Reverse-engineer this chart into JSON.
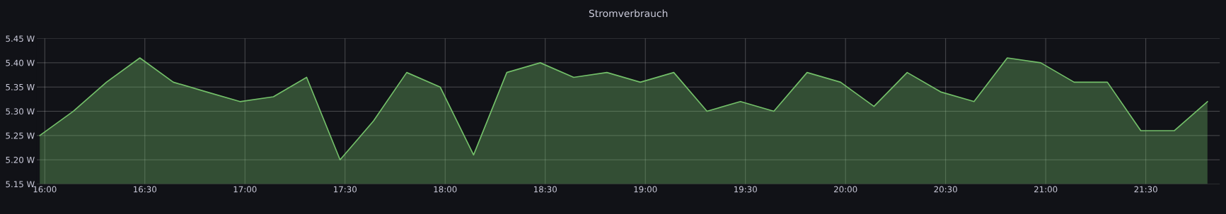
{
  "chart_data": {
    "type": "area",
    "title": "Stromverbrauch",
    "x": [
      15.975,
      16.142,
      16.308,
      16.475,
      16.642,
      16.808,
      16.975,
      17.142,
      17.308,
      17.475,
      17.642,
      17.808,
      17.975,
      18.142,
      18.308,
      18.475,
      18.642,
      18.808,
      18.975,
      19.142,
      19.308,
      19.475,
      19.642,
      19.808,
      19.975,
      20.142,
      20.308,
      20.475,
      20.642,
      20.808,
      20.975,
      21.142,
      21.308,
      21.475,
      21.642,
      21.808
    ],
    "series": [
      {
        "color": "#73bf69",
        "values": [
          5.25,
          5.3,
          5.36,
          5.41,
          5.36,
          5.34,
          5.32,
          5.33,
          5.37,
          5.2,
          5.28,
          5.38,
          5.35,
          5.21,
          5.38,
          5.4,
          5.37,
          5.38,
          5.36,
          5.38,
          5.3,
          5.32,
          5.3,
          5.38,
          5.36,
          5.31,
          5.38,
          5.34,
          5.32,
          5.41,
          5.4,
          5.36,
          5.36,
          5.26,
          5.26,
          5.32
        ]
      }
    ],
    "xlim": [
      15.96,
      21.87
    ],
    "xticks": [
      {
        "value": 16,
        "label": "16:00"
      },
      {
        "value": 16.5,
        "label": "16:30"
      },
      {
        "value": 17,
        "label": "17:00"
      },
      {
        "value": 17.5,
        "label": "17:30"
      },
      {
        "value": 18,
        "label": "18:00"
      },
      {
        "value": 18.5,
        "label": "18:30"
      },
      {
        "value": 19,
        "label": "19:00"
      },
      {
        "value": 19.5,
        "label": "19:30"
      },
      {
        "value": 20,
        "label": "20:00"
      },
      {
        "value": 20.5,
        "label": "20:30"
      },
      {
        "value": 21,
        "label": "21:00"
      },
      {
        "value": 21.5,
        "label": "21:30"
      }
    ],
    "ylim": [
      5.15,
      5.45
    ],
    "yticks": [
      {
        "value": 5.15,
        "label": "5.15 W"
      },
      {
        "value": 5.2,
        "label": "5.20 W"
      },
      {
        "value": 5.25,
        "label": "5.25 W"
      },
      {
        "value": 5.3,
        "label": "5.30 W"
      },
      {
        "value": 5.35,
        "label": "5.35 W"
      },
      {
        "value": 5.4,
        "label": "5.40 W"
      },
      {
        "value": 5.45,
        "label": "5.45 W"
      }
    ],
    "grid": true,
    "legend": false,
    "marker": "none",
    "line_style": "solid"
  }
}
